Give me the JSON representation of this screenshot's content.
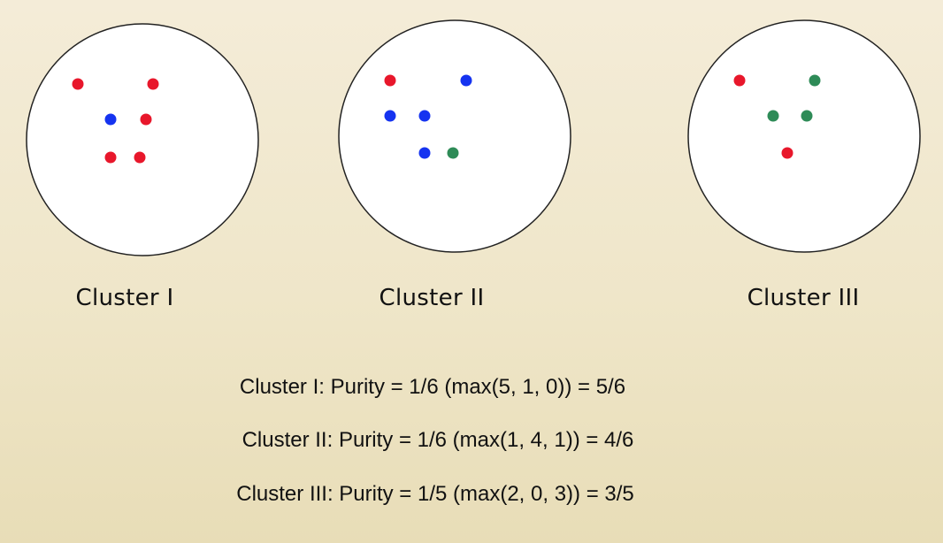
{
  "clusters": [
    {
      "label": "Cluster I",
      "points": [
        "red",
        "red",
        "blue",
        "red",
        "red",
        "red"
      ]
    },
    {
      "label": "Cluster II",
      "points": [
        "red",
        "blue",
        "blue",
        "blue",
        "blue",
        "green"
      ]
    },
    {
      "label": "Cluster III",
      "points": [
        "red",
        "green",
        "green",
        "green",
        "red"
      ]
    }
  ],
  "colors": {
    "red": "#e8172b",
    "blue": "#1533f0",
    "green": "#2e8b57"
  },
  "formulas": [
    "Cluster I: Purity = 1/6 (max(5, 1, 0)) = 5/6",
    "Cluster II: Purity = 1/6 (max(1, 4, 1)) = 4/6",
    "Cluster III: Purity = 1/5 (max(2, 0, 3)) = 3/5"
  ]
}
